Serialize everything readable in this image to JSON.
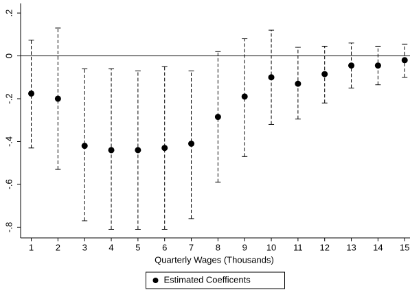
{
  "chart_data": {
    "type": "errorbar",
    "x_label": "Quarterly Wages (Thousands)",
    "x": [
      1,
      2,
      3,
      4,
      5,
      6,
      7,
      8,
      9,
      10,
      11,
      12,
      13,
      14,
      15
    ],
    "series": [
      {
        "name": "Estimated Coefficents",
        "color": "#000000",
        "values": [
          -0.176,
          -0.2,
          -0.42,
          -0.44,
          -0.44,
          -0.43,
          -0.41,
          -0.285,
          -0.19,
          -0.1,
          -0.13,
          -0.085,
          -0.045,
          -0.045,
          -0.02
        ],
        "ci_low": [
          -0.43,
          -0.53,
          -0.77,
          -0.81,
          -0.81,
          -0.81,
          -0.76,
          -0.59,
          -0.47,
          -0.32,
          -0.295,
          -0.22,
          -0.15,
          -0.135,
          -0.1
        ],
        "ci_high": [
          0.074,
          0.13,
          -0.06,
          -0.06,
          -0.07,
          -0.05,
          -0.07,
          0.02,
          0.08,
          0.12,
          0.04,
          0.045,
          0.06,
          0.045,
          0.055
        ]
      }
    ],
    "xlim": [
      0.6,
      15.2
    ],
    "xticks": [
      1,
      2,
      3,
      4,
      5,
      6,
      7,
      8,
      9,
      10,
      11,
      12,
      13,
      14,
      15
    ],
    "ylim": [
      -0.85,
      0.245
    ],
    "yticks": [
      {
        "value": -0.8,
        "label": "-.8"
      },
      {
        "value": -0.6,
        "label": "-.6"
      },
      {
        "value": -0.4,
        "label": "-.4"
      },
      {
        "value": -0.2,
        "label": "-.2"
      },
      0,
      {
        "value": 0.2,
        "label": ".2"
      }
    ],
    "reference_line": 0,
    "legend": "bottom"
  }
}
